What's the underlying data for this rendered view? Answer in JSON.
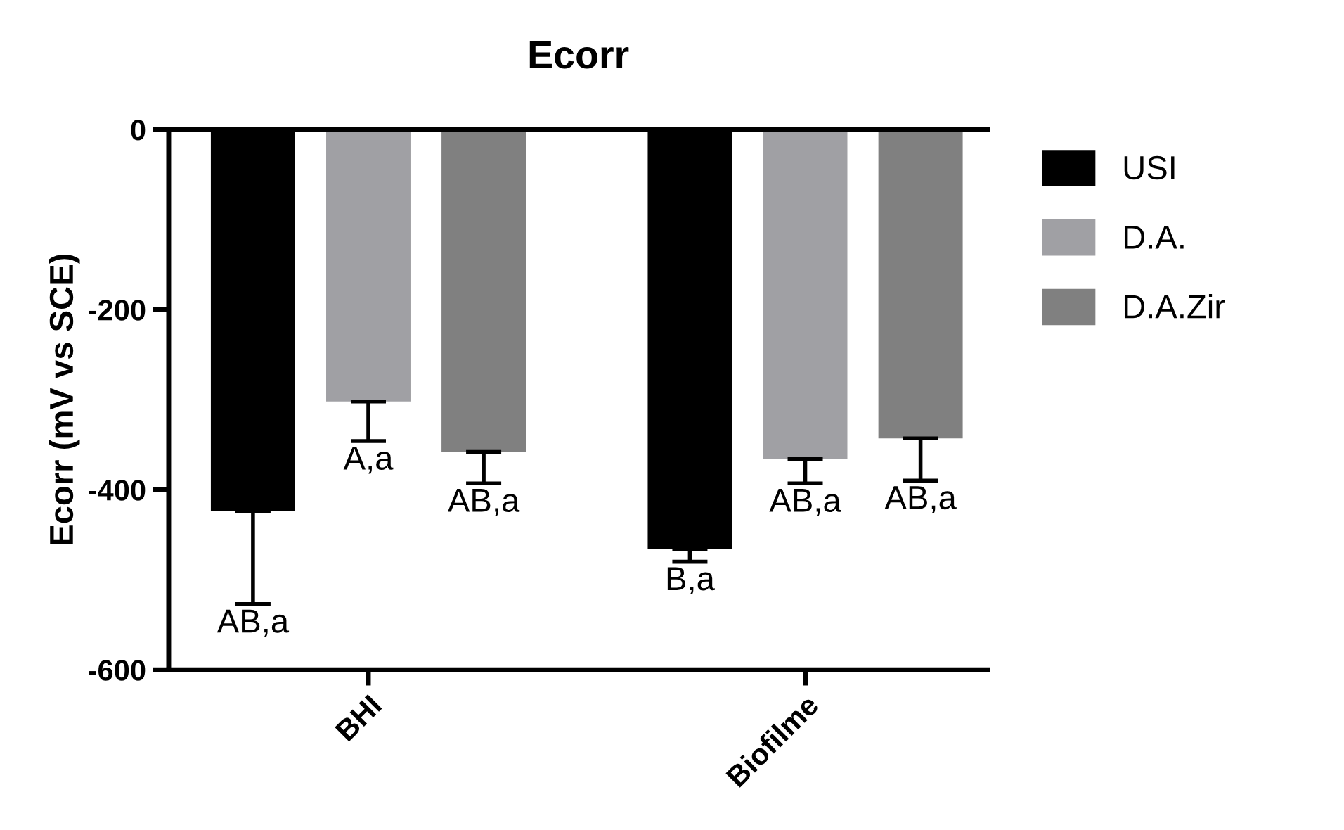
{
  "chart_data": {
    "type": "bar",
    "title": "Ecorr",
    "ylabel": "Ecorr (mV vs SCE)",
    "categories": [
      "BHI",
      "Biofilme"
    ],
    "series": [
      {
        "name": "USI",
        "color": "#000000",
        "values": [
          -424,
          -466
        ],
        "errors": [
          [
            -527,
            -424
          ],
          [
            -480,
            -466
          ]
        ],
        "value_labels": [
          "AB,a",
          "B,a"
        ]
      },
      {
        "name": "D.A.",
        "color": "#a0a0a4",
        "values": [
          -302,
          -366
        ],
        "errors": [
          [
            -346,
            -302
          ],
          [
            -393,
            -366
          ]
        ],
        "value_labels": [
          "A,a",
          "AB,a"
        ]
      },
      {
        "name": "D.A.Zir",
        "color": "#808080",
        "values": [
          -358,
          -343
        ],
        "errors": [
          [
            -393,
            -358
          ],
          [
            -390,
            -343
          ]
        ],
        "value_labels": [
          "AB,a",
          "AB,a"
        ]
      }
    ],
    "ylim": [
      -600,
      0
    ],
    "yticks": [
      0,
      -200,
      -400,
      -600
    ],
    "grid": false,
    "legend": "right"
  }
}
